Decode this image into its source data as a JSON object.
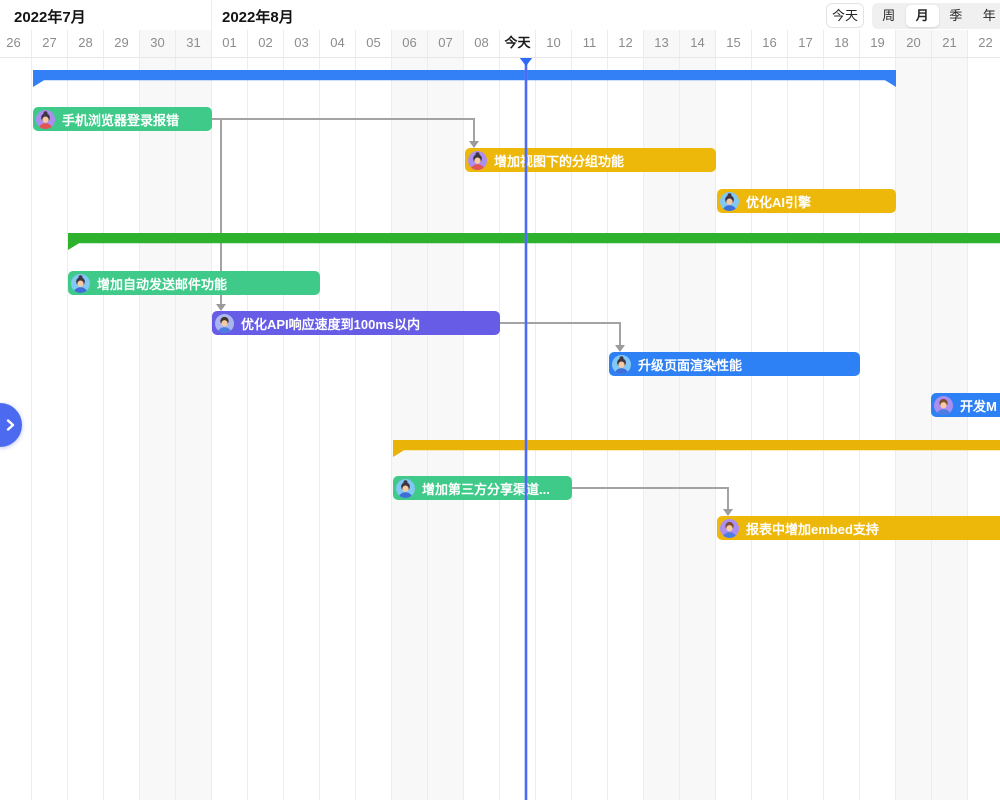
{
  "toolbar": {
    "today_button": "今天",
    "view_switcher": {
      "options": [
        "周",
        "月",
        "季",
        "年"
      ],
      "selected": "月"
    }
  },
  "timeline": {
    "months": [
      {
        "label": "2022年7月"
      },
      {
        "label": "2022年8月"
      }
    ],
    "days": [
      {
        "label": "26"
      },
      {
        "label": "27"
      },
      {
        "label": "28"
      },
      {
        "label": "29"
      },
      {
        "label": "30",
        "weekend": true
      },
      {
        "label": "31",
        "weekend": true
      },
      {
        "label": "01"
      },
      {
        "label": "02"
      },
      {
        "label": "03"
      },
      {
        "label": "04"
      },
      {
        "label": "05"
      },
      {
        "label": "06",
        "weekend": true
      },
      {
        "label": "07",
        "weekend": true
      },
      {
        "label": "08"
      },
      {
        "label": "今天",
        "today": true
      },
      {
        "label": "10"
      },
      {
        "label": "11"
      },
      {
        "label": "12"
      },
      {
        "label": "13",
        "weekend": true
      },
      {
        "label": "14",
        "weekend": true
      },
      {
        "label": "15"
      },
      {
        "label": "16"
      },
      {
        "label": "17"
      },
      {
        "label": "18"
      },
      {
        "label": "19"
      },
      {
        "label": "20",
        "weekend": true
      },
      {
        "label": "21",
        "weekend": true
      },
      {
        "label": "22"
      }
    ]
  },
  "bars": {
    "summaries": [
      {
        "name": "blue-group-summary",
        "color": "#3380f6"
      },
      {
        "name": "green-group-summary",
        "color": "#2eb22e"
      },
      {
        "name": "yellow-group-summary",
        "color": "#eab308"
      }
    ],
    "tasks": [
      {
        "label": "手机浏览器登录报错",
        "color": "#3fca8a",
        "avatar": "female-red-purple"
      },
      {
        "label": "增加视图下的分组功能",
        "color": "#eeb80a",
        "avatar": "female-red-purple"
      },
      {
        "label": "优化AI引擎",
        "color": "#eeb80a",
        "avatar": "female-blue-sky"
      },
      {
        "label": "增加自动发送邮件功能",
        "color": "#3fca8a",
        "avatar": "female-blue-sky"
      },
      {
        "label": "优化API响应速度到100ms以内",
        "color": "#675ce6",
        "avatar": "male-blue-lavender"
      },
      {
        "label": "升级页面渲染性能",
        "color": "#2e80f5",
        "avatar": "female-blue-sky"
      },
      {
        "label": "开发M",
        "color": "#2e80f5",
        "avatar": "male-blue-purple"
      },
      {
        "label": "增加第三方分享渠道...",
        "color": "#3fca8a",
        "avatar": "female-blue-sky"
      },
      {
        "label": "报表中增加embed支持",
        "color": "#eeb80a",
        "avatar": "male-blue-purple"
      }
    ]
  },
  "colors": {
    "today_line": "#4c6bf5",
    "today_marker": "#2e6cf6",
    "arrow": "#a3a3a3",
    "weekend_fill": "#f8f8f9",
    "gridline": "#ededee",
    "expand_button": "#4c6af0"
  }
}
